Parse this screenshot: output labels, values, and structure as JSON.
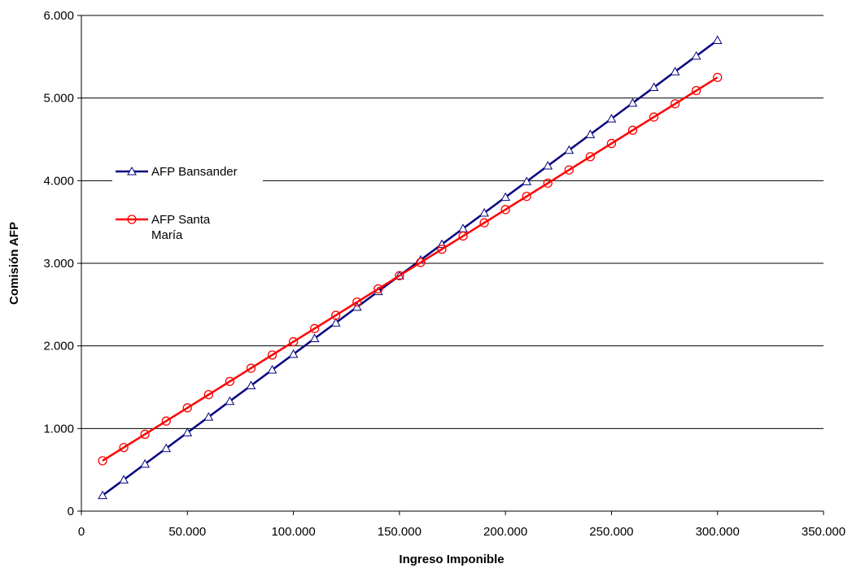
{
  "chart_data": {
    "type": "line",
    "xlabel": "Ingreso Imponible",
    "ylabel": "Comisión AFP",
    "xlim": [
      0,
      350000
    ],
    "ylim": [
      0,
      6000
    ],
    "x_ticks": [
      "0",
      "50.000",
      "100.000",
      "150.000",
      "200.000",
      "250.000",
      "300.000",
      "350.000"
    ],
    "y_ticks": [
      "0",
      "1.000",
      "2.000",
      "3.000",
      "4.000",
      "5.000",
      "6.000"
    ],
    "grid": "horizontal",
    "legend_position": "left-middle",
    "x": [
      10000,
      20000,
      30000,
      40000,
      50000,
      60000,
      70000,
      80000,
      90000,
      100000,
      110000,
      120000,
      130000,
      140000,
      150000,
      160000,
      170000,
      180000,
      190000,
      200000,
      210000,
      220000,
      230000,
      240000,
      250000,
      260000,
      270000,
      280000,
      290000,
      300000
    ],
    "series": [
      {
        "name": "AFP Bansander",
        "color": "#000080",
        "marker": "triangle-open",
        "values": [
          190,
          380,
          570,
          760,
          950,
          1140,
          1330,
          1520,
          1710,
          1900,
          2090,
          2280,
          2470,
          2660,
          2850,
          3040,
          3230,
          3420,
          3610,
          3800,
          3990,
          4180,
          4370,
          4560,
          4750,
          4940,
          5130,
          5320,
          5510,
          5700
        ]
      },
      {
        "name": "AFP Santa María",
        "color": "#ff0000",
        "marker": "circle-open",
        "values": [
          610,
          770,
          930,
          1090,
          1250,
          1410,
          1570,
          1730,
          1890,
          2050,
          2210,
          2370,
          2530,
          2690,
          2850,
          3010,
          3170,
          3330,
          3490,
          3650,
          3810,
          3970,
          4130,
          4290,
          4450,
          4610,
          4770,
          4930,
          5090,
          5250
        ]
      }
    ],
    "legend_labels": [
      {
        "series": 0,
        "lines": [
          "AFP Bansander"
        ]
      },
      {
        "series": 1,
        "lines": [
          "AFP Santa",
          "María"
        ]
      }
    ]
  }
}
